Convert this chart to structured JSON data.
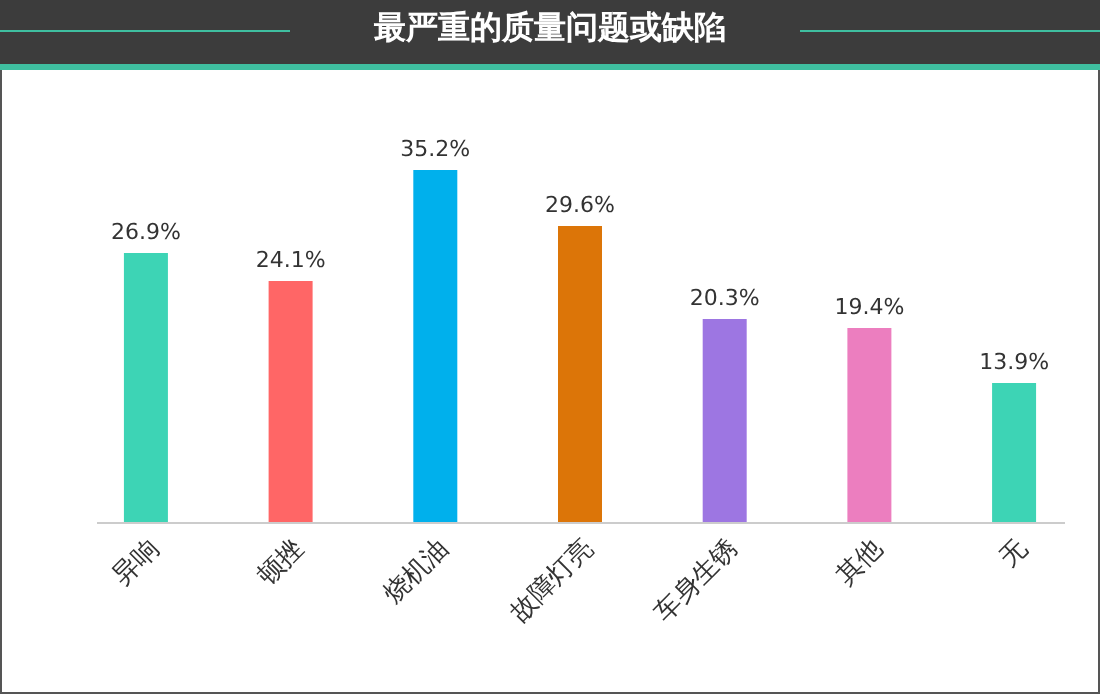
{
  "chart_data": {
    "type": "bar",
    "title": "最严重的质量问题或缺陷",
    "categories": [
      "异响",
      "顿挫",
      "烧机油",
      "故障灯亮",
      "车身生锈",
      "其他",
      "无"
    ],
    "values": [
      26.9,
      24.1,
      35.2,
      29.6,
      20.3,
      19.4,
      13.9
    ],
    "value_labels": [
      "26.9%",
      "24.1%",
      "35.2%",
      "29.6%",
      "20.3%",
      "19.4%",
      "13.9%"
    ],
    "colors": [
      "#3dd4b5",
      "#ff6666",
      "#00b0ec",
      "#dc7508",
      "#9d76e2",
      "#ec7ebf",
      "#3dd4b5"
    ],
    "legend": false
  }
}
